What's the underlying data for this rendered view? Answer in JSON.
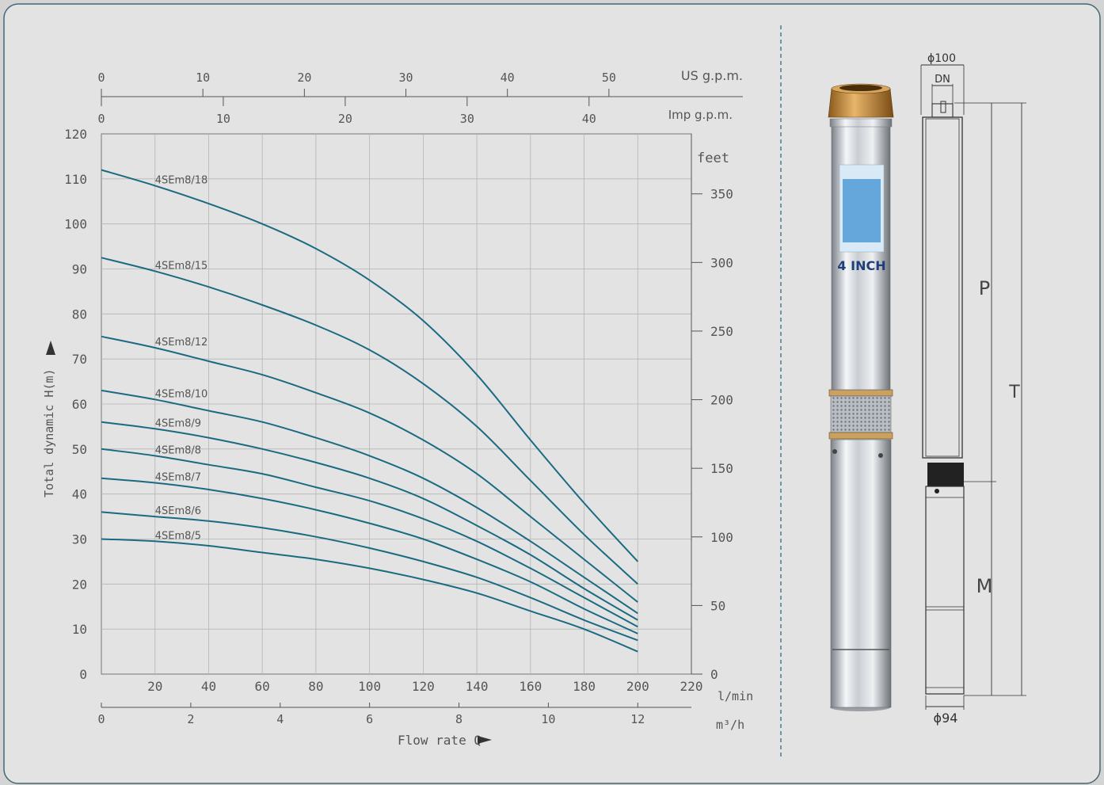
{
  "chart_data": {
    "type": "line",
    "xlabel": "Flow rate Q",
    "ylabel": "Total dynamic H(m)",
    "x_unit": "l/min",
    "x_ticks": [
      "20",
      "40",
      "60",
      "80",
      "100",
      "120",
      "140",
      "160",
      "180",
      "200",
      "220"
    ],
    "xlim": [
      0,
      220
    ],
    "y_ticks": [
      "0",
      "10",
      "20",
      "30",
      "40",
      "50",
      "60",
      "70",
      "80",
      "90",
      "100",
      "110",
      "120"
    ],
    "ylim": [
      0,
      120
    ],
    "grid": true,
    "secondary_axes": {
      "us_gpm": {
        "label": "US g.p.m.",
        "ticks": [
          "0",
          "10",
          "20",
          "30",
          "40",
          "50"
        ]
      },
      "imp_gpm": {
        "label": "Imp g.p.m.",
        "ticks": [
          "0",
          "10",
          "20",
          "30",
          "40"
        ]
      },
      "m3h": {
        "label": "m³/h",
        "ticks": [
          "0",
          "2",
          "4",
          "6",
          "8",
          "10",
          "12"
        ]
      },
      "feet": {
        "label": "feet",
        "ticks": [
          "0",
          "50",
          "100",
          "150",
          "200",
          "250",
          "300",
          "350"
        ]
      }
    },
    "series": [
      {
        "name": "4SEm8/18",
        "x": [
          0,
          20,
          40,
          60,
          80,
          100,
          120,
          140,
          160,
          180,
          200
        ],
        "y": [
          112,
          108.5,
          104.5,
          100,
          94.5,
          87.5,
          78.5,
          66.5,
          52,
          38,
          25
        ]
      },
      {
        "name": "4SEm8/15",
        "x": [
          0,
          20,
          40,
          60,
          80,
          100,
          120,
          140,
          160,
          180,
          200
        ],
        "y": [
          92.5,
          89.5,
          86,
          82,
          77.5,
          72,
          64.5,
          55,
          43,
          31,
          20
        ]
      },
      {
        "name": "4SEm8/12",
        "x": [
          0,
          20,
          40,
          60,
          80,
          100,
          120,
          140,
          160,
          180,
          200
        ],
        "y": [
          75,
          72.5,
          69.5,
          66.5,
          62.5,
          58,
          52,
          44.5,
          35,
          25.5,
          16
        ]
      },
      {
        "name": "4SEm8/10",
        "x": [
          0,
          20,
          40,
          60,
          80,
          100,
          120,
          140,
          160,
          180,
          200
        ],
        "y": [
          63,
          61,
          58.5,
          56,
          52.5,
          48.5,
          43.5,
          37,
          29.5,
          21.5,
          13.5
        ]
      },
      {
        "name": "4SEm8/9",
        "x": [
          0,
          20,
          40,
          60,
          80,
          100,
          120,
          140,
          160,
          180,
          200
        ],
        "y": [
          56,
          54.5,
          52.5,
          50,
          47,
          43.5,
          39,
          33,
          26.5,
          19,
          12
        ]
      },
      {
        "name": "4SEm8/8",
        "x": [
          0,
          20,
          40,
          60,
          80,
          100,
          120,
          140,
          160,
          180,
          200
        ],
        "y": [
          50,
          48.5,
          46.5,
          44.5,
          41.5,
          38.5,
          34.5,
          29.5,
          23.5,
          17,
          10.5
        ]
      },
      {
        "name": "4SEm8/7",
        "x": [
          0,
          20,
          40,
          60,
          80,
          100,
          120,
          140,
          160,
          180,
          200
        ],
        "y": [
          43.5,
          42.5,
          41,
          39,
          36.5,
          33.5,
          30,
          25.5,
          20.5,
          14.5,
          9
        ]
      },
      {
        "name": "4SEm8/6",
        "x": [
          0,
          20,
          40,
          60,
          80,
          100,
          120,
          140,
          160,
          180,
          200
        ],
        "y": [
          36,
          35,
          34,
          32.5,
          30.5,
          28,
          25,
          21.5,
          17,
          12,
          7.5
        ]
      },
      {
        "name": "4SEm8/5",
        "x": [
          0,
          20,
          40,
          60,
          80,
          100,
          120,
          140,
          160,
          180,
          200
        ],
        "y": [
          30,
          29.5,
          28.5,
          27,
          25.5,
          23.5,
          21,
          18,
          14,
          10,
          5
        ]
      }
    ],
    "line_color": "#1a6b82"
  },
  "product": {
    "badge": "4 INCH",
    "dims": {
      "outer": "ϕ100",
      "dn": "DN",
      "p": "P",
      "t": "T",
      "m": "M",
      "base": "ϕ94"
    }
  }
}
